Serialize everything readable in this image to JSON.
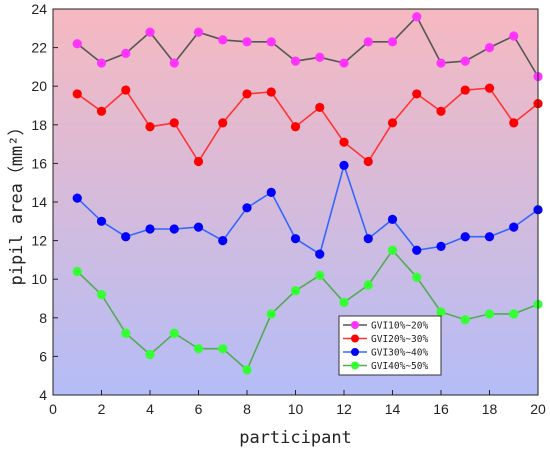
{
  "chart_data": {
    "type": "line",
    "xlabel": "participant",
    "ylabel": "pipil area（mm²）",
    "xlim": [
      0,
      20
    ],
    "ylim": [
      4,
      24
    ],
    "xticks": [
      "0",
      "2",
      "4",
      "6",
      "8",
      "10",
      "12",
      "14",
      "16",
      "18",
      "20"
    ],
    "yticks": [
      "4",
      "6",
      "8",
      "10",
      "12",
      "14",
      "16",
      "18",
      "20",
      "22",
      "24"
    ],
    "grid": false,
    "legend_position": "bottom-right",
    "background_gradient": {
      "top": "#f6b9c0",
      "bottom": "#b4bdf7"
    },
    "x": [
      1,
      2,
      3,
      4,
      5,
      6,
      7,
      8,
      9,
      10,
      11,
      12,
      13,
      14,
      15,
      16,
      17,
      18,
      19,
      20
    ],
    "series": [
      {
        "name": "GVI10%~20%",
        "line_color": "#555555",
        "marker_color": "#ff33ff",
        "values": [
          22.2,
          21.2,
          21.7,
          22.8,
          21.2,
          22.8,
          22.4,
          22.3,
          22.3,
          21.3,
          21.5,
          21.2,
          22.3,
          22.3,
          23.6,
          21.2,
          21.3,
          22.0,
          22.6,
          20.5
        ]
      },
      {
        "name": "GVI20%~30%",
        "line_color": "#ff3333",
        "marker_color": "#ff0000",
        "values": [
          19.6,
          18.7,
          19.8,
          17.9,
          18.1,
          16.1,
          18.1,
          19.6,
          19.7,
          17.9,
          18.9,
          17.1,
          16.1,
          18.1,
          19.6,
          18.7,
          19.8,
          19.9,
          18.1,
          19.1
        ]
      },
      {
        "name": "GVI30%~40%",
        "line_color": "#3366ff",
        "marker_color": "#0000ff",
        "values": [
          14.2,
          13.0,
          12.2,
          12.6,
          12.6,
          12.7,
          12.0,
          13.7,
          14.5,
          12.1,
          11.3,
          15.9,
          12.1,
          13.1,
          11.5,
          11.7,
          12.2,
          12.2,
          12.7,
          13.6
        ]
      },
      {
        "name": "GVI40%~50%",
        "line_color": "#55aa55",
        "marker_color": "#33ff33",
        "values": [
          10.4,
          9.2,
          7.2,
          6.1,
          7.2,
          6.4,
          6.4,
          5.3,
          8.2,
          9.4,
          10.2,
          8.8,
          9.7,
          11.5,
          10.1,
          8.3,
          7.9,
          8.2,
          8.2,
          8.7
        ]
      }
    ]
  }
}
